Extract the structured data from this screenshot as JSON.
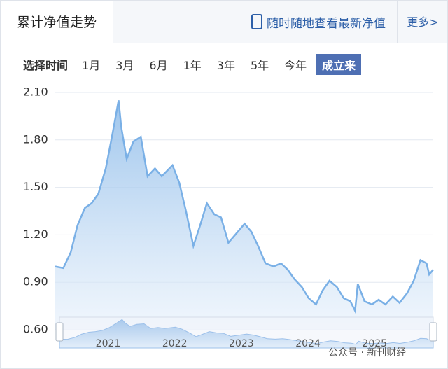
{
  "header": {
    "tab": "累计净值走势",
    "app_link": "随时随地查看最新净值",
    "more": "更多>"
  },
  "time_range": {
    "label": "选择时间",
    "options": [
      "1月",
      "3月",
      "6月",
      "1年",
      "3年",
      "5年",
      "今年",
      "成立来"
    ],
    "selected": 7
  },
  "watermark": "公众号 · 新刊财经",
  "chart_data": {
    "type": "area",
    "color": "#7ab0e6",
    "grid": true,
    "ylim": [
      0.6,
      2.1
    ],
    "yticks": [
      {
        "value": 0.6,
        "label": "0.60"
      },
      {
        "value": 0.9,
        "label": "0.90"
      },
      {
        "value": 1.2,
        "label": "1.20"
      },
      {
        "value": 1.5,
        "label": "1.50"
      },
      {
        "value": 1.8,
        "label": "1.80"
      },
      {
        "value": 2.1,
        "label": "2.10"
      }
    ],
    "xlim": [
      2020.27,
      2025.88
    ],
    "xticks": [
      2021,
      2022,
      2023,
      2024,
      2025
    ],
    "x": [
      2020.27,
      2020.39,
      2020.5,
      2020.6,
      2020.71,
      2020.81,
      2020.91,
      2021.02,
      2021.12,
      2021.21,
      2021.25,
      2021.33,
      2021.43,
      2021.54,
      2021.64,
      2021.75,
      2021.85,
      2022.01,
      2022.11,
      2022.21,
      2022.32,
      2022.42,
      2022.52,
      2022.63,
      2022.73,
      2022.84,
      2022.94,
      2023.08,
      2023.18,
      2023.28,
      2023.39,
      2023.51,
      2023.62,
      2023.72,
      2023.82,
      2023.93,
      2024.03,
      2024.14,
      2024.24,
      2024.34,
      2024.45,
      2024.55,
      2024.65,
      2024.72,
      2024.76,
      2024.86,
      2024.97,
      2025.07,
      2025.17,
      2025.28,
      2025.38,
      2025.49,
      2025.59,
      2025.69,
      2025.78,
      2025.82,
      2025.88
    ],
    "values": [
      1.0,
      0.99,
      1.09,
      1.26,
      1.37,
      1.4,
      1.46,
      1.62,
      1.84,
      2.05,
      1.88,
      1.68,
      1.79,
      1.82,
      1.57,
      1.62,
      1.57,
      1.64,
      1.53,
      1.35,
      1.13,
      1.26,
      1.4,
      1.33,
      1.31,
      1.15,
      1.2,
      1.27,
      1.22,
      1.13,
      1.02,
      1.0,
      1.02,
      0.98,
      0.92,
      0.87,
      0.8,
      0.76,
      0.85,
      0.91,
      0.87,
      0.8,
      0.78,
      0.72,
      0.89,
      0.78,
      0.76,
      0.79,
      0.76,
      0.81,
      0.77,
      0.83,
      0.91,
      1.04,
      1.02,
      0.95,
      0.98
    ]
  }
}
